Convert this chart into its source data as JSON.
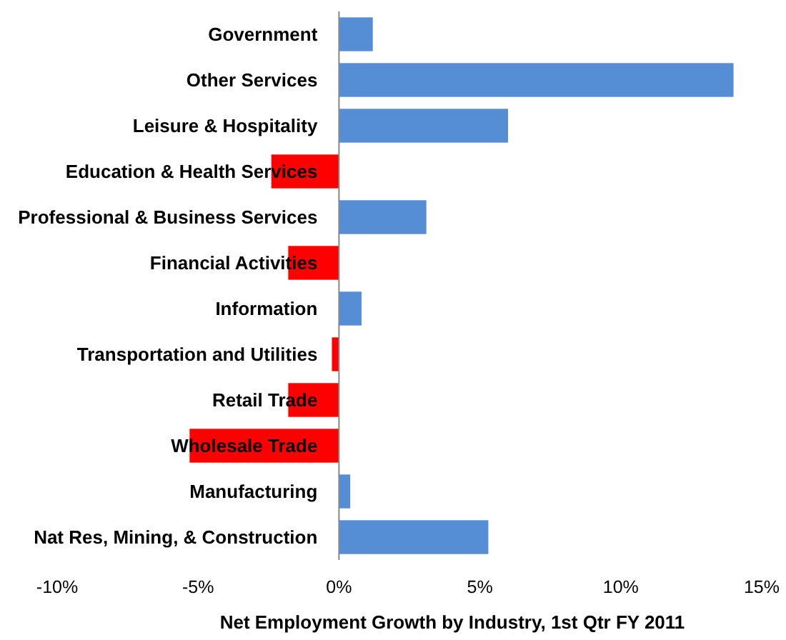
{
  "chart_data": {
    "type": "bar",
    "orientation": "horizontal",
    "xlabel": "Net Employment Growth by Industry, 1st Qtr FY 2011",
    "categories": [
      "Government",
      "Other Services",
      "Leisure & Hospitality",
      "Education & Health Services",
      "Professional & Business Services",
      "Financial Activities",
      "Information",
      "Transportation and Utilities",
      "Retail Trade",
      "Wholesale Trade",
      "Manufacturing",
      "Nat Res, Mining, & Construction"
    ],
    "values": [
      1.2,
      14.0,
      6.0,
      -2.4,
      3.1,
      -1.8,
      0.8,
      -0.25,
      -1.8,
      -5.3,
      0.4,
      5.3
    ],
    "colors": [
      "#558ed5",
      "#558ed5",
      "#558ed5",
      "#ff0000",
      "#558ed5",
      "#ff0000",
      "#558ed5",
      "#ff0000",
      "#ff0000",
      "#ff0000",
      "#558ed5",
      "#558ed5"
    ],
    "xlim": [
      -10,
      15
    ],
    "xticks": [
      {
        "value": -10,
        "label": "-10%"
      },
      {
        "value": -5,
        "label": "-5%"
      },
      {
        "value": 0,
        "label": "0%"
      },
      {
        "value": 5,
        "label": "5%"
      },
      {
        "value": 10,
        "label": "10%"
      },
      {
        "value": 15,
        "label": "15%"
      }
    ],
    "grid": false
  }
}
